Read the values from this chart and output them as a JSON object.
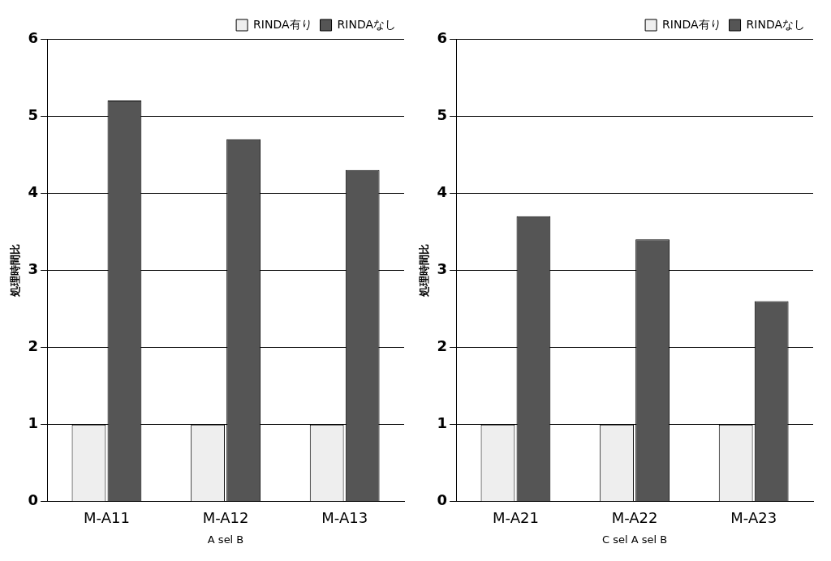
{
  "chart_data": [
    {
      "type": "bar",
      "xlabel": "A sel B",
      "ylabel": "処理時間比",
      "categories": [
        "M-A11",
        "M-A12",
        "M-A13"
      ],
      "series": [
        {
          "name": "RINDA有り",
          "color": "#eeeeee",
          "values": [
            1,
            1,
            1
          ]
        },
        {
          "name": "RINDAなし",
          "color": "#555555",
          "values": [
            5.2,
            4.7,
            4.3
          ]
        }
      ],
      "ylim": [
        0,
        6
      ],
      "yticks": [
        0,
        1,
        2,
        3,
        4,
        5,
        6
      ],
      "grid": "y",
      "legend": "top right"
    },
    {
      "type": "bar",
      "xlabel": "C sel A sel B",
      "ylabel": "処理時間比",
      "categories": [
        "M-A21",
        "M-A22",
        "M-A23"
      ],
      "series": [
        {
          "name": "RINDA有り",
          "color": "#eeeeee",
          "values": [
            1,
            1,
            1
          ]
        },
        {
          "name": "RINDAなし",
          "color": "#555555",
          "values": [
            3.7,
            3.4,
            2.6
          ]
        }
      ],
      "ylim": [
        0,
        6
      ],
      "yticks": [
        0,
        1,
        2,
        3,
        4,
        5,
        6
      ],
      "grid": "y",
      "legend": "top right"
    }
  ]
}
